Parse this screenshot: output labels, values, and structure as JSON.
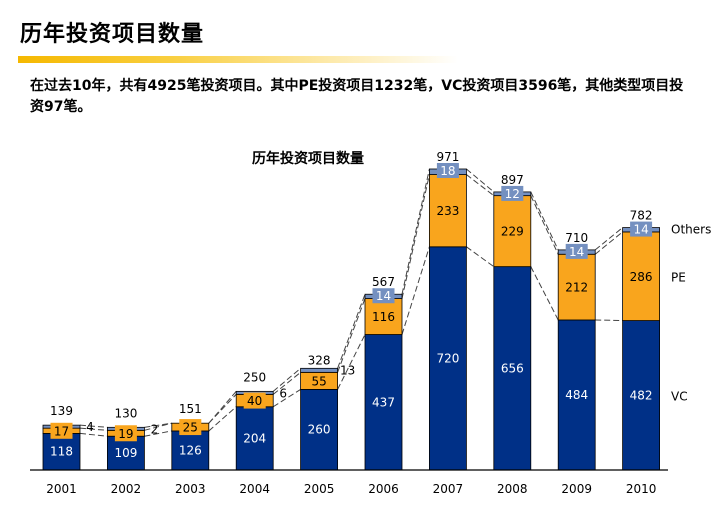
{
  "page": {
    "title": "历年投资项目数量",
    "summary": "在过去10年，共有4925笔投资项目。其中PE投资项目1232笔，VC投资项目3596笔，其他类型项目投资97笔。"
  },
  "colors": {
    "vc": "#003087",
    "pe": "#f9a51d",
    "others": "#7490c0",
    "axis": "#000000"
  },
  "chart_data": {
    "type": "bar",
    "stacked": true,
    "title": "历年投资项目数量",
    "xlabel": "",
    "ylabel": "",
    "categories": [
      "2001",
      "2002",
      "2003",
      "2004",
      "2005",
      "2006",
      "2007",
      "2008",
      "2009",
      "2010"
    ],
    "series": [
      {
        "name": "VC",
        "values": [
          118,
          109,
          126,
          204,
          260,
          437,
          720,
          656,
          484,
          482
        ]
      },
      {
        "name": "PE",
        "values": [
          17,
          19,
          25,
          40,
          55,
          116,
          233,
          229,
          212,
          286
        ]
      },
      {
        "name": "Others",
        "values": [
          4,
          2,
          0,
          6,
          13,
          14,
          18,
          12,
          14,
          14
        ]
      }
    ],
    "totals": [
      139,
      130,
      151,
      250,
      328,
      567,
      971,
      897,
      710,
      782
    ],
    "legend": [
      "Others",
      "PE",
      "VC"
    ],
    "legend_position": "right",
    "grid": false,
    "ylim": [
      0,
      1000
    ]
  }
}
